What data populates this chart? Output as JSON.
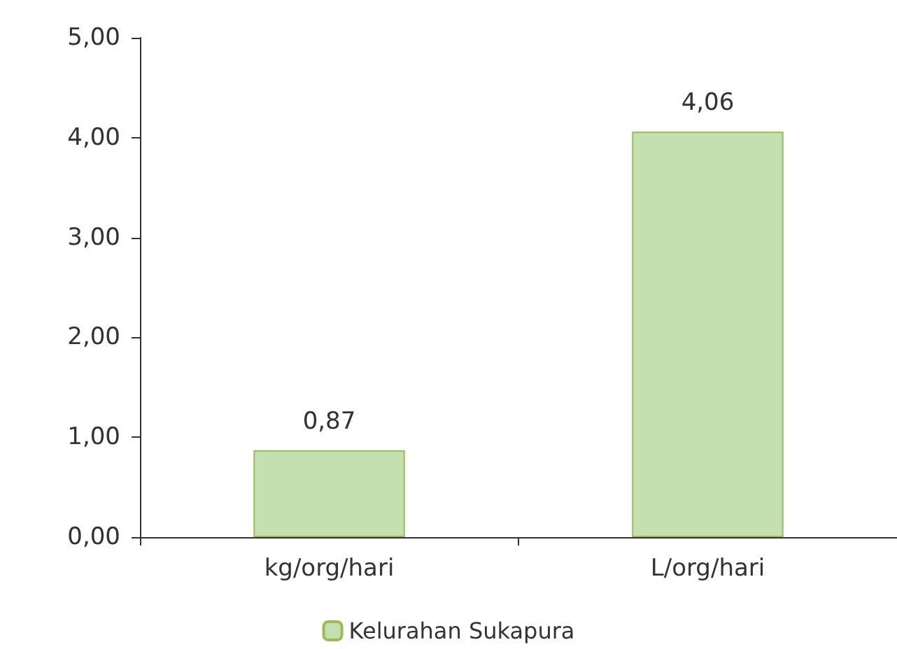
{
  "chart_data": {
    "type": "bar",
    "categories": [
      "kg/org/hari",
      "L/org/hari"
    ],
    "series": [
      {
        "name": "Kelurahan Sukapura",
        "color": "#c4dfb0",
        "values": [
          0.87,
          4.06
        ],
        "value_labels": [
          "0,87",
          "4,06"
        ]
      }
    ],
    "ylim": [
      0,
      5
    ],
    "yticks": [
      {
        "value": 0,
        "label": "0,00"
      },
      {
        "value": 1,
        "label": "1,00"
      },
      {
        "value": 2,
        "label": "2,00"
      },
      {
        "value": 3,
        "label": "3,00"
      },
      {
        "value": 4,
        "label": "4,00"
      },
      {
        "value": 5,
        "label": "5,00"
      }
    ],
    "grid": false,
    "legend": "bottom"
  }
}
